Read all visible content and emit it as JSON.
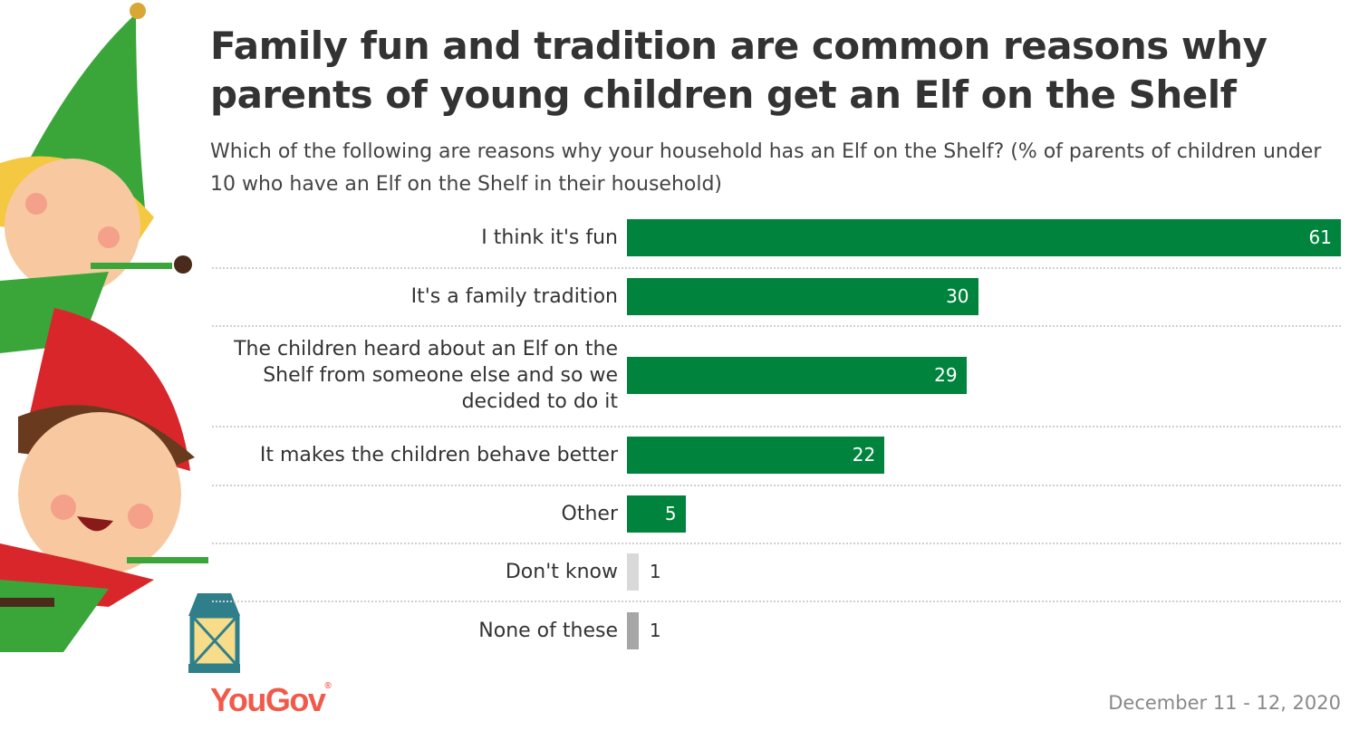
{
  "title": "Family fun and tradition are common reasons why parents of young children get an Elf on the Shelf",
  "subtitle": "Which of the following are reasons why your household has an Elf on the Shelf? (% of parents of children under 10 who have an Elf on the Shelf in their household)",
  "footer": {
    "brand": "YouGov",
    "date": "December 11 - 12, 2020"
  },
  "colors": {
    "primary": "#00843d",
    "dont_know": "#d9d9d9",
    "none": "#a6a6a6",
    "brand": "#f15a4a"
  },
  "chart_data": {
    "type": "bar",
    "orientation": "horizontal",
    "title": "Family fun and tradition are common reasons why parents of young children get an Elf on the Shelf",
    "xlabel": "",
    "ylabel": "",
    "xlim": [
      0,
      61
    ],
    "grid": false,
    "categories": [
      "I think it's fun",
      "It's a family tradition",
      "The children heard about an Elf on the Shelf from someone else and so we decided to do it",
      "It makes the children behave better",
      "Other",
      "Don't know",
      "None of these"
    ],
    "values": [
      61,
      30,
      29,
      22,
      5,
      1,
      1
    ],
    "bar_colors": [
      "#00843d",
      "#00843d",
      "#00843d",
      "#00843d",
      "#00843d",
      "#d9d9d9",
      "#a6a6a6"
    ]
  }
}
